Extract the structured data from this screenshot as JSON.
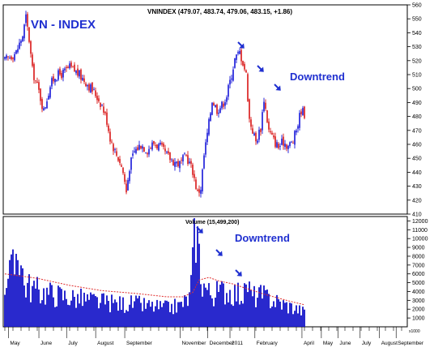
{
  "header": {
    "ticker_line": "VNINDEX (479.07, 483.74, 479.06, 483.15, +1.86)",
    "title": "VN - INDEX"
  },
  "annotations": {
    "price": "Downtrend",
    "volume": "Downtrend",
    "volume_label": "Volume (15,499,200)",
    "volume_unit": "x1000"
  },
  "colors": {
    "up_candle": "#1515d8",
    "down_candle": "#d81515",
    "volume_bar": "#1212c8",
    "volume_ma": "#e03030",
    "arrow": "#1f2fd0",
    "title": "#1f2fd0"
  },
  "chart_data": [
    {
      "type": "candlestick",
      "ylim": [
        410,
        560
      ],
      "yticks": [
        410,
        420,
        430,
        440,
        450,
        460,
        470,
        480,
        490,
        500,
        510,
        520,
        530,
        540,
        550,
        560
      ],
      "x_months": [
        "May",
        "June",
        "July",
        "August",
        "September",
        "November",
        "December",
        "2011",
        "February",
        "April",
        "May",
        "June",
        "July",
        "August",
        "September"
      ],
      "close_path": [
        [
          0,
          520
        ],
        [
          3,
          523
        ],
        [
          7,
          526
        ],
        [
          11,
          538
        ],
        [
          13,
          551
        ],
        [
          15,
          535
        ],
        [
          17,
          513
        ],
        [
          21,
          498
        ],
        [
          24,
          484
        ],
        [
          28,
          502
        ],
        [
          31,
          509
        ],
        [
          36,
          511
        ],
        [
          40,
          515
        ],
        [
          44,
          512
        ],
        [
          50,
          505
        ],
        [
          56,
          496
        ],
        [
          60,
          488
        ],
        [
          63,
          477
        ],
        [
          65,
          465
        ],
        [
          68,
          455
        ],
        [
          71,
          448
        ],
        [
          73,
          440
        ],
        [
          75,
          426
        ],
        [
          77,
          444
        ],
        [
          80,
          455
        ],
        [
          84,
          460
        ],
        [
          88,
          456
        ],
        [
          92,
          461
        ],
        [
          96,
          458
        ],
        [
          100,
          452
        ],
        [
          104,
          448
        ],
        [
          108,
          446
        ],
        [
          112,
          452
        ],
        [
          116,
          441
        ],
        [
          119,
          425
        ],
        [
          121,
          429
        ],
        [
          123,
          452
        ],
        [
          126,
          475
        ],
        [
          128,
          492
        ],
        [
          131,
          485
        ],
        [
          134,
          488
        ],
        [
          137,
          495
        ],
        [
          139,
          505
        ],
        [
          142,
          521
        ],
        [
          145,
          526
        ],
        [
          147,
          519
        ],
        [
          149,
          510
        ],
        [
          151,
          478
        ],
        [
          153,
          470
        ],
        [
          155,
          462
        ],
        [
          158,
          472
        ],
        [
          160,
          493
        ],
        [
          163,
          470
        ],
        [
          166,
          463
        ],
        [
          169,
          458
        ],
        [
          172,
          462
        ],
        [
          175,
          459
        ],
        [
          178,
          462
        ],
        [
          181,
          475
        ],
        [
          183,
          485
        ],
        [
          185,
          482
        ]
      ],
      "total_sessions": 256
    },
    {
      "type": "bar",
      "title": "Volume (15,499,200)",
      "ylim": [
        0,
        12500
      ],
      "yticks": [
        1000,
        2000,
        3000,
        4000,
        5000,
        6000,
        7000,
        8000,
        9000,
        10000,
        11000,
        12000
      ],
      "volume_path": [
        [
          0,
          5500
        ],
        [
          6,
          7200
        ],
        [
          8,
          10800
        ],
        [
          12,
          5200
        ],
        [
          20,
          4400
        ],
        [
          30,
          4000
        ],
        [
          40,
          3600
        ],
        [
          50,
          3300
        ],
        [
          60,
          3000
        ],
        [
          70,
          2800
        ],
        [
          80,
          2800
        ],
        [
          90,
          2500
        ],
        [
          100,
          2300
        ],
        [
          108,
          2600
        ],
        [
          114,
          3500
        ],
        [
          116,
          7500
        ],
        [
          118,
          12500
        ],
        [
          120,
          8800
        ],
        [
          122,
          5500
        ],
        [
          126,
          4200
        ],
        [
          130,
          4000
        ],
        [
          136,
          4500
        ],
        [
          142,
          4200
        ],
        [
          148,
          3900
        ],
        [
          150,
          5500
        ],
        [
          152,
          3700
        ],
        [
          158,
          3800
        ],
        [
          164,
          3400
        ],
        [
          170,
          2900
        ],
        [
          176,
          2500
        ],
        [
          180,
          2200
        ],
        [
          185,
          1800
        ]
      ],
      "ma_path": [
        [
          0,
          6000
        ],
        [
          20,
          5500
        ],
        [
          40,
          4700
        ],
        [
          60,
          4100
        ],
        [
          80,
          3800
        ],
        [
          100,
          3400
        ],
        [
          110,
          3400
        ],
        [
          116,
          3900
        ],
        [
          120,
          5300
        ],
        [
          126,
          5600
        ],
        [
          132,
          5200
        ],
        [
          140,
          4900
        ],
        [
          150,
          4300
        ],
        [
          160,
          3700
        ],
        [
          170,
          3200
        ],
        [
          178,
          2800
        ],
        [
          185,
          2500
        ]
      ]
    }
  ]
}
